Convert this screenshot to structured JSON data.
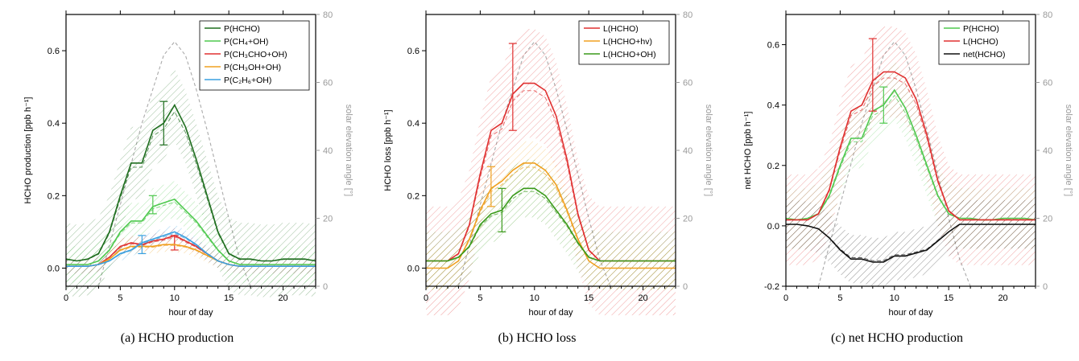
{
  "figure": {
    "panels": [
      {
        "caption": "(a) HCHO production"
      },
      {
        "caption": "(b) HCHO loss"
      },
      {
        "caption": "(c) net HCHO production"
      }
    ]
  },
  "chart_data": [
    {
      "type": "line",
      "xlabel": "hour of day",
      "ylabel": "HCHO production [ppb h⁻¹]",
      "y2label": "solar elevation angle [°]",
      "xlim": [
        0,
        23
      ],
      "ylim": [
        -0.05,
        0.7
      ],
      "y2lim": [
        0,
        80
      ],
      "xticks": [
        0,
        5,
        10,
        15,
        20
      ],
      "yticks": [
        0.0,
        0.2,
        0.4,
        0.6
      ],
      "y2ticks": [
        0,
        20,
        40,
        60,
        80
      ],
      "legend_position": "top-right",
      "x": [
        0,
        1,
        2,
        3,
        4,
        5,
        6,
        7,
        8,
        9,
        10,
        11,
        12,
        13,
        14,
        15,
        16,
        17,
        18,
        19,
        20,
        21,
        22,
        23
      ],
      "series": [
        {
          "name": "P(HCHO)",
          "color": "#1f6e1f",
          "values": [
            0.025,
            0.02,
            0.025,
            0.04,
            0.1,
            0.2,
            0.29,
            0.29,
            0.38,
            0.4,
            0.45,
            0.39,
            0.3,
            0.2,
            0.1,
            0.04,
            0.025,
            0.025,
            0.02,
            0.02,
            0.025,
            0.025,
            0.025,
            0.02
          ],
          "band": 0.1,
          "errorbar": {
            "x": 9,
            "low": 0.34,
            "high": 0.46
          }
        },
        {
          "name": "P(CH₄+OH)",
          "color": "#4fc94f",
          "values": [
            0.01,
            0.01,
            0.01,
            0.02,
            0.05,
            0.1,
            0.13,
            0.13,
            0.17,
            0.18,
            0.19,
            0.16,
            0.13,
            0.09,
            0.05,
            0.02,
            0.01,
            0.01,
            0.01,
            0.01,
            0.01,
            0.01,
            0.01,
            0.01
          ],
          "band": 0.05,
          "errorbar": {
            "x": 8,
            "low": 0.15,
            "high": 0.2
          }
        },
        {
          "name": "P(CH₃CHO+OH)",
          "color": "#e03030",
          "values": [
            0.005,
            0.005,
            0.005,
            0.01,
            0.03,
            0.06,
            0.07,
            0.065,
            0.075,
            0.08,
            0.09,
            0.075,
            0.06,
            0.04,
            0.02,
            0.01,
            0.005,
            0.005,
            0.005,
            0.005,
            0.005,
            0.005,
            0.005,
            0.005
          ],
          "band": 0.02,
          "errorbar": {
            "x": 10,
            "low": 0.05,
            "high": 0.09
          }
        },
        {
          "name": "P(CH₃OH+OH)",
          "color": "#f0a020",
          "values": [
            0.005,
            0.005,
            0.005,
            0.01,
            0.025,
            0.05,
            0.06,
            0.06,
            0.06,
            0.065,
            0.065,
            0.06,
            0.05,
            0.035,
            0.02,
            0.01,
            0.005,
            0.005,
            0.005,
            0.005,
            0.005,
            0.005,
            0.005,
            0.005
          ],
          "band": 0.02
        },
        {
          "name": "P(C₂H₆+OH)",
          "color": "#3aa0e0",
          "values": [
            0.005,
            0.005,
            0.005,
            0.01,
            0.02,
            0.04,
            0.05,
            0.07,
            0.08,
            0.09,
            0.1,
            0.085,
            0.065,
            0.04,
            0.02,
            0.01,
            0.005,
            0.005,
            0.005,
            0.005,
            0.005,
            0.005,
            0.005,
            0.005
          ],
          "band": 0.02,
          "errorbar": {
            "x": 7,
            "low": 0.04,
            "high": 0.09
          }
        }
      ],
      "solar_elevation": {
        "x": [
          3,
          4,
          5,
          6,
          7,
          8,
          9,
          10,
          11,
          12,
          13,
          14,
          15,
          16,
          17
        ],
        "values": [
          0,
          12,
          24,
          36,
          48,
          58,
          68,
          72,
          68,
          58,
          46,
          33,
          20,
          8,
          0
        ]
      }
    },
    {
      "type": "line",
      "xlabel": "hour of day",
      "ylabel": "HCHO loss [ppb h⁻¹]",
      "y2label": "solar elevation angle [°]",
      "xlim": [
        0,
        23
      ],
      "ylim": [
        -0.05,
        0.7
      ],
      "y2lim": [
        0,
        80
      ],
      "xticks": [
        0,
        5,
        10,
        15,
        20
      ],
      "yticks": [
        0.0,
        0.2,
        0.4,
        0.6
      ],
      "y2ticks": [
        0,
        20,
        40,
        60,
        80
      ],
      "legend_position": "top-right",
      "x": [
        0,
        1,
        2,
        3,
        4,
        5,
        6,
        7,
        8,
        9,
        10,
        11,
        12,
        13,
        14,
        15,
        16,
        17,
        18,
        19,
        20,
        21,
        22,
        23
      ],
      "series": [
        {
          "name": "L(HCHO)",
          "color": "#e03030",
          "values": [
            0.02,
            0.02,
            0.02,
            0.04,
            0.12,
            0.26,
            0.38,
            0.4,
            0.48,
            0.51,
            0.51,
            0.49,
            0.42,
            0.3,
            0.15,
            0.05,
            0.02,
            0.02,
            0.02,
            0.02,
            0.02,
            0.02,
            0.02,
            0.02
          ],
          "band": 0.15,
          "errorbar": {
            "x": 8,
            "low": 0.38,
            "high": 0.62
          }
        },
        {
          "name": "L(HCHO+hv)",
          "color": "#f0a020",
          "values": [
            0,
            0,
            0,
            0.02,
            0.08,
            0.16,
            0.22,
            0.24,
            0.27,
            0.29,
            0.29,
            0.27,
            0.23,
            0.16,
            0.08,
            0.02,
            0,
            0,
            0,
            0,
            0,
            0,
            0,
            0
          ],
          "band": 0.06,
          "errorbar": {
            "x": 6,
            "low": 0.17,
            "high": 0.28
          }
        },
        {
          "name": "L(HCHO+OH)",
          "color": "#3a9a1a",
          "values": [
            0.02,
            0.02,
            0.02,
            0.03,
            0.06,
            0.12,
            0.15,
            0.16,
            0.2,
            0.22,
            0.22,
            0.2,
            0.16,
            0.12,
            0.07,
            0.03,
            0.02,
            0.02,
            0.02,
            0.02,
            0.02,
            0.02,
            0.02,
            0.02
          ],
          "band": 0.08,
          "errorbar": {
            "x": 7,
            "low": 0.1,
            "high": 0.22
          }
        }
      ],
      "solar_elevation": {
        "x": [
          3,
          4,
          5,
          6,
          7,
          8,
          9,
          10,
          11,
          12,
          13,
          14,
          15,
          16,
          17
        ],
        "values": [
          0,
          12,
          24,
          36,
          48,
          58,
          68,
          72,
          68,
          58,
          46,
          33,
          20,
          8,
          0
        ]
      }
    },
    {
      "type": "line",
      "xlabel": "hour of day",
      "ylabel": "net HCHO [ppb h⁻¹]",
      "y2label": "solar elevation angle [°]",
      "xlim": [
        0,
        23
      ],
      "ylim": [
        -0.2,
        0.7
      ],
      "y2lim": [
        0,
        80
      ],
      "xticks": [
        0,
        5,
        10,
        15,
        20
      ],
      "yticks": [
        -0.2,
        0.0,
        0.2,
        0.4,
        0.6
      ],
      "y2ticks": [
        0,
        20,
        40,
        60,
        80
      ],
      "legend_position": "top-right",
      "x": [
        0,
        1,
        2,
        3,
        4,
        5,
        6,
        7,
        8,
        9,
        10,
        11,
        12,
        13,
        14,
        15,
        16,
        17,
        18,
        19,
        20,
        21,
        22,
        23
      ],
      "series": [
        {
          "name": "P(HCHO)",
          "color": "#4fc94f",
          "values": [
            0.025,
            0.02,
            0.025,
            0.04,
            0.1,
            0.2,
            0.29,
            0.29,
            0.38,
            0.4,
            0.45,
            0.39,
            0.3,
            0.2,
            0.1,
            0.04,
            0.025,
            0.025,
            0.02,
            0.02,
            0.025,
            0.025,
            0.025,
            0.02
          ],
          "band": 0.1,
          "errorbar": {
            "x": 9,
            "low": 0.34,
            "high": 0.46
          }
        },
        {
          "name": "L(HCHO)",
          "color": "#e03030",
          "values": [
            0.02,
            0.02,
            0.02,
            0.04,
            0.12,
            0.26,
            0.38,
            0.4,
            0.48,
            0.51,
            0.51,
            0.49,
            0.42,
            0.3,
            0.15,
            0.05,
            0.02,
            0.02,
            0.02,
            0.02,
            0.02,
            0.02,
            0.02,
            0.02
          ],
          "band": 0.15,
          "errorbar": {
            "x": 8,
            "low": 0.38,
            "high": 0.62
          }
        },
        {
          "name": "net(HCHO)",
          "color": "#111111",
          "values": [
            0.005,
            0.005,
            0.0,
            -0.01,
            -0.04,
            -0.08,
            -0.11,
            -0.11,
            -0.12,
            -0.12,
            -0.1,
            -0.1,
            -0.09,
            -0.08,
            -0.05,
            -0.02,
            0.005,
            0.005,
            0.005,
            0.005,
            0.005,
            0.005,
            0.005,
            0.005
          ],
          "band": 0.08
        }
      ],
      "solar_elevation": {
        "x": [
          3,
          4,
          5,
          6,
          7,
          8,
          9,
          10,
          11,
          12,
          13,
          14,
          15,
          16,
          17
        ],
        "values": [
          0,
          12,
          24,
          36,
          48,
          58,
          68,
          72,
          68,
          58,
          46,
          33,
          20,
          8,
          0
        ]
      }
    }
  ]
}
